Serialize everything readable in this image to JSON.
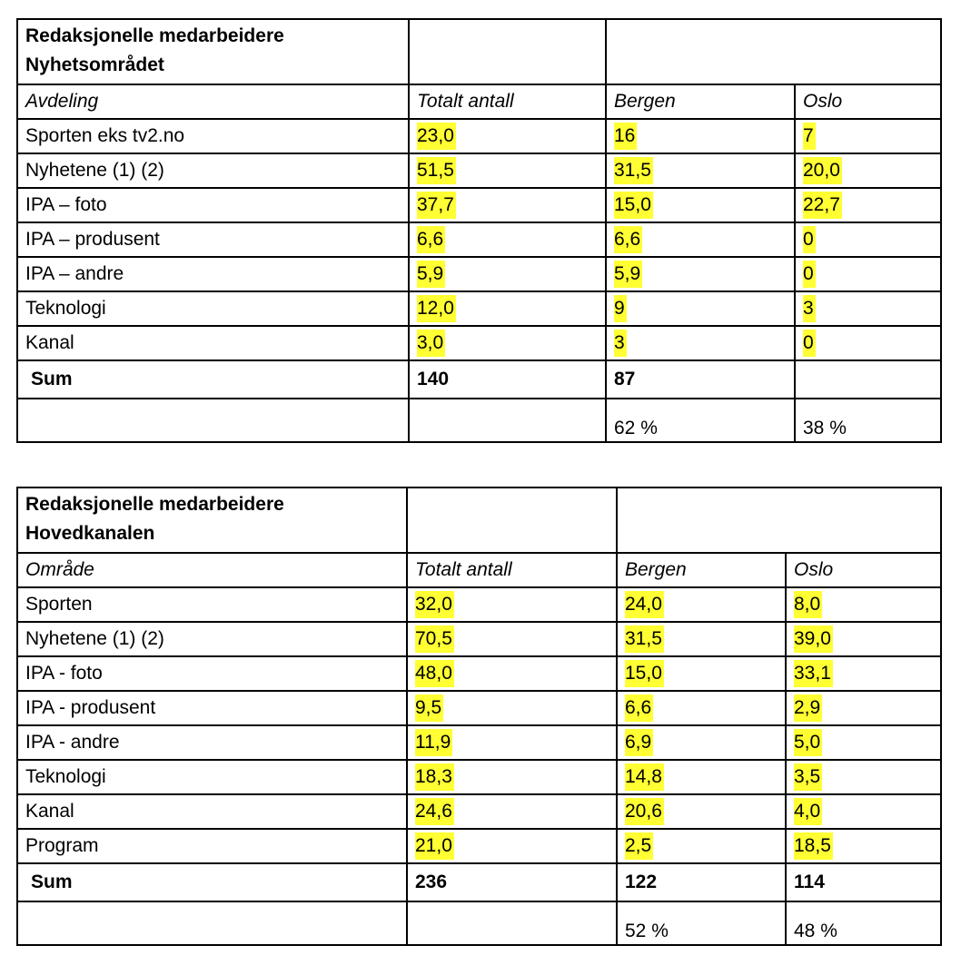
{
  "table1": {
    "title_line1": "Redaksjonelle medarbeidere",
    "title_line2": "Nyhetsområdet",
    "headers": [
      "Avdeling",
      "Totalt antall",
      "Bergen",
      "Oslo"
    ],
    "rows": [
      [
        "Sporten eks tv2.no",
        "23,0",
        "16",
        "7"
      ],
      [
        "Nyhetene (1) (2)",
        "51,5",
        "31,5",
        "20,0"
      ],
      [
        "IPA – foto",
        "37,7",
        "15,0",
        "22,7"
      ],
      [
        "IPA – produsent",
        "6,6",
        "6,6",
        "0"
      ],
      [
        "IPA – andre",
        "5,9",
        "5,9",
        "0"
      ],
      [
        "Teknologi",
        "12,0",
        "9",
        "3"
      ],
      [
        "Kanal",
        "3,0",
        "3",
        "0"
      ]
    ],
    "sum": [
      "Sum",
      "140",
      "87",
      ""
    ],
    "pct": [
      "",
      "",
      "62 %",
      "38 %"
    ],
    "highlight_color": "#ffff33"
  },
  "table2": {
    "title_line1": "Redaksjonelle medarbeidere",
    "title_line2": "Hovedkanalen",
    "headers": [
      "Område",
      "Totalt antall",
      "Bergen",
      "Oslo"
    ],
    "rows": [
      [
        "Sporten",
        "32,0",
        "24,0",
        "8,0"
      ],
      [
        "Nyhetene (1) (2)",
        "70,5",
        "31,5",
        "39,0"
      ],
      [
        "IPA - foto",
        "48,0",
        "15,0",
        "33,1"
      ],
      [
        "IPA - produsent",
        "9,5",
        "6,6",
        "2,9"
      ],
      [
        "IPA - andre",
        "11,9",
        "6,9",
        "5,0"
      ],
      [
        "Teknologi",
        "18,3",
        "14,8",
        "3,5"
      ],
      [
        "Kanal",
        "24,6",
        "20,6",
        "4,0"
      ],
      [
        "Program",
        "21,0",
        "2,5",
        "18,5"
      ]
    ],
    "sum": [
      "Sum",
      "236",
      "122",
      "114"
    ],
    "pct": [
      "",
      "",
      "52 %",
      "48 %"
    ],
    "highlight_color": "#ffff33"
  }
}
